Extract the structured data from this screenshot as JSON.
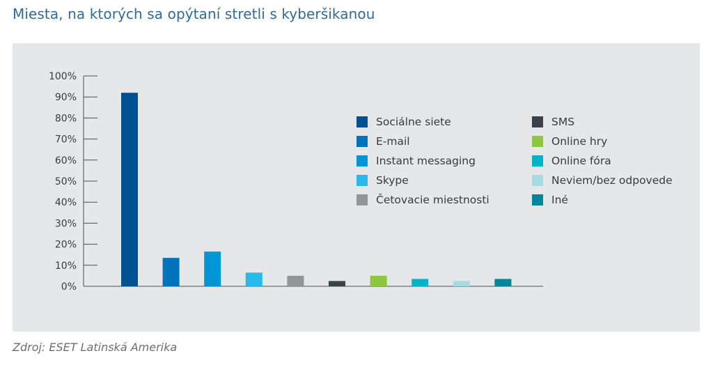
{
  "title": "Miesta, na ktorých sa opýtaní stretli s kyberšikanou",
  "source": "Zdroj: ESET Latinská Amerika",
  "chart_data": {
    "type": "bar",
    "title": "Miesta, na ktorých sa opýtaní stretli s kyberšikanou",
    "xlabel": "",
    "ylabel": "",
    "ylim": [
      0,
      100
    ],
    "y_ticks": [
      "0%",
      "10%",
      "20%",
      "30%",
      "40%",
      "50%",
      "60%",
      "70%",
      "80%",
      "90%",
      "100%"
    ],
    "grid": false,
    "legend_position": "right",
    "categories": [
      "Sociálne siete",
      "E-mail",
      "Instant messaging",
      "Skype",
      "Četovacie miestnosti",
      "SMS",
      "Online hry",
      "Online fóra",
      "Neviem/bez odpovede",
      "Iné"
    ],
    "values": [
      92,
      13.5,
      16.5,
      6.5,
      5,
      2.5,
      5,
      3.5,
      2.5,
      3.5
    ],
    "colors": [
      "#005293",
      "#0073bc",
      "#0096d6",
      "#29b8eb",
      "#939598",
      "#3a4148",
      "#8dc63f",
      "#00b3c6",
      "#a6dbe3",
      "#00879a"
    ]
  }
}
